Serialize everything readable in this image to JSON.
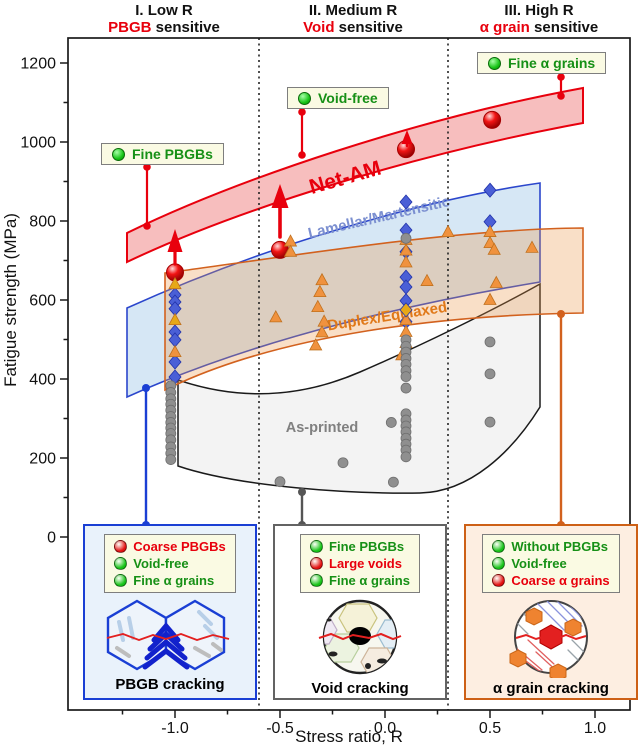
{
  "chart_data": {
    "type": "scatter",
    "title": "",
    "xlabel": "Stress ratio, R",
    "ylabel": "Fatigue strength (MPa)",
    "xticks": [
      "-1.0",
      "-0.5",
      "0.0",
      "0.5",
      "1.0"
    ],
    "yticks": [
      0,
      200,
      400,
      600,
      800,
      1000,
      1200
    ],
    "xlim": [
      -1.5,
      1.17
    ],
    "ylim": [
      -440,
      1265
    ],
    "grid": false,
    "region_dividers": [
      -0.6,
      0.3
    ],
    "regions": [
      {
        "numeral": "I. Low R",
        "keyword": "PBGB",
        "rest": " sensitive"
      },
      {
        "numeral": "II. Medium R",
        "keyword": "Void",
        "rest": " sensitive"
      },
      {
        "numeral": "III. High R",
        "keyword": "α grain",
        "rest": " sensitive"
      }
    ],
    "bands": [
      {
        "id": "net-am",
        "label": "Net-AM",
        "color": "#e8000d"
      },
      {
        "id": "lamellar",
        "label": "Lamellar/Martensitic",
        "color": "#7b8fd0"
      },
      {
        "id": "duplex",
        "label": "Duplex/Equiaxed",
        "color": "#e07818"
      },
      {
        "id": "as-printed",
        "label": "As-printed",
        "color": "#808080"
      }
    ],
    "callouts": [
      {
        "label": "Fine PBGBs"
      },
      {
        "label": "Void-free"
      },
      {
        "label": "Fine α grains"
      }
    ],
    "series": [
      {
        "name": "Net-AM",
        "name_id": "net-am",
        "marker": "sphere",
        "color": "#e21010",
        "points": [
          [
            -1.0,
            670
          ],
          [
            -0.5,
            727
          ],
          [
            0.1,
            982
          ],
          [
            0.51,
            1056
          ]
        ]
      },
      {
        "name": "Lamellar/Martensitic",
        "name_id": "lamellar",
        "marker": "diamond",
        "color": "#4a5fd6",
        "points": [
          [
            -1.0,
            613
          ],
          [
            -1.0,
            595
          ],
          [
            -1.0,
            578
          ],
          [
            -1.0,
            519
          ],
          [
            -1.0,
            499
          ],
          [
            -1.0,
            443
          ],
          [
            -1.0,
            405
          ],
          [
            0.1,
            848
          ],
          [
            0.1,
            777
          ],
          [
            0.1,
            722
          ],
          [
            0.1,
            658
          ],
          [
            0.1,
            633
          ],
          [
            0.1,
            598
          ],
          [
            0.1,
            545
          ],
          [
            0.5,
            878
          ],
          [
            0.5,
            798
          ]
        ]
      },
      {
        "name": "Duplex/Equiaxed",
        "name_id": "duplex",
        "marker": "triangle",
        "color": "#f0923e",
        "points": [
          [
            -1.0,
            468
          ],
          [
            -0.52,
            556
          ],
          [
            -0.45,
            748
          ],
          [
            -0.45,
            722
          ],
          [
            -0.3,
            650
          ],
          [
            -0.31,
            620
          ],
          [
            -0.32,
            582
          ],
          [
            -0.29,
            545
          ],
          [
            -0.3,
            518
          ],
          [
            -0.33,
            485
          ],
          [
            0.1,
            752
          ],
          [
            0.1,
            725
          ],
          [
            0.1,
            695
          ],
          [
            0.1,
            549
          ],
          [
            0.1,
            519
          ],
          [
            0.1,
            491
          ],
          [
            0.08,
            460
          ],
          [
            0.2,
            648
          ],
          [
            0.3,
            772
          ],
          [
            0.5,
            772
          ],
          [
            0.5,
            744
          ],
          [
            0.52,
            727
          ],
          [
            0.53,
            643
          ],
          [
            0.5,
            600
          ],
          [
            0.7,
            732
          ]
        ]
      },
      {
        "name": "Gold triangles",
        "name_id": "gold-triangle",
        "marker": "triangle",
        "color": "#e6a817",
        "points": [
          [
            -1.0,
            640
          ],
          [
            -1.0,
            549
          ]
        ]
      },
      {
        "name": "Gold diamond",
        "name_id": "gold-diamond",
        "marker": "diamond",
        "color": "#e6a817",
        "points": [
          [
            0.1,
            575
          ]
        ]
      },
      {
        "name": "As-printed",
        "name_id": "as-printed",
        "marker": "circle",
        "color": "#8f8f8f",
        "points": [
          [
            -1.02,
            383
          ],
          [
            -1.02,
            366
          ],
          [
            -1.02,
            350
          ],
          [
            -1.02,
            336
          ],
          [
            -1.02,
            321
          ],
          [
            -1.02,
            305
          ],
          [
            -1.02,
            290
          ],
          [
            -1.02,
            276
          ],
          [
            -1.02,
            262
          ],
          [
            -1.02,
            246
          ],
          [
            -1.02,
            228
          ],
          [
            -1.02,
            212
          ],
          [
            -1.02,
            196
          ],
          [
            -0.5,
            140
          ],
          [
            -0.2,
            188
          ],
          [
            0.03,
            290
          ],
          [
            0.04,
            139
          ],
          [
            0.1,
            756
          ],
          [
            0.1,
            499
          ],
          [
            0.1,
            483
          ],
          [
            0.1,
            468
          ],
          [
            0.1,
            452
          ],
          [
            0.1,
            437
          ],
          [
            0.1,
            421
          ],
          [
            0.1,
            406
          ],
          [
            0.1,
            377
          ],
          [
            0.1,
            312
          ],
          [
            0.1,
            296
          ],
          [
            0.1,
            281
          ],
          [
            0.1,
            266
          ],
          [
            0.1,
            250
          ],
          [
            0.1,
            235
          ],
          [
            0.1,
            220
          ],
          [
            0.1,
            203
          ],
          [
            0.5,
            494
          ],
          [
            0.5,
            413
          ],
          [
            0.5,
            291
          ]
        ]
      }
    ]
  },
  "boxes": [
    {
      "caption": "PBGB cracking",
      "items": [
        {
          "dot": "#e21010",
          "label": "Coarse PBGBs",
          "color": "#e8000d"
        },
        {
          "dot": "#16c316",
          "label": "Void-free",
          "color": "#169016"
        },
        {
          "dot": "#16c316",
          "label": "Fine α grains",
          "color": "#169016"
        }
      ]
    },
    {
      "caption": "Void cracking",
      "items": [
        {
          "dot": "#16c316",
          "label": "Fine PBGBs",
          "color": "#169016"
        },
        {
          "dot": "#e21010",
          "label": "Large voids",
          "color": "#e8000d"
        },
        {
          "dot": "#16c316",
          "label": "Fine α grains",
          "color": "#169016"
        }
      ]
    },
    {
      "caption": "α grain cracking",
      "items": [
        {
          "dot": "#16c316",
          "label": "Without PBGBs",
          "color": "#169016"
        },
        {
          "dot": "#16c316",
          "label": "Void-free",
          "color": "#169016"
        },
        {
          "dot": "#e21010",
          "label": "Coarse α grains",
          "color": "#e8000d"
        }
      ]
    }
  ]
}
